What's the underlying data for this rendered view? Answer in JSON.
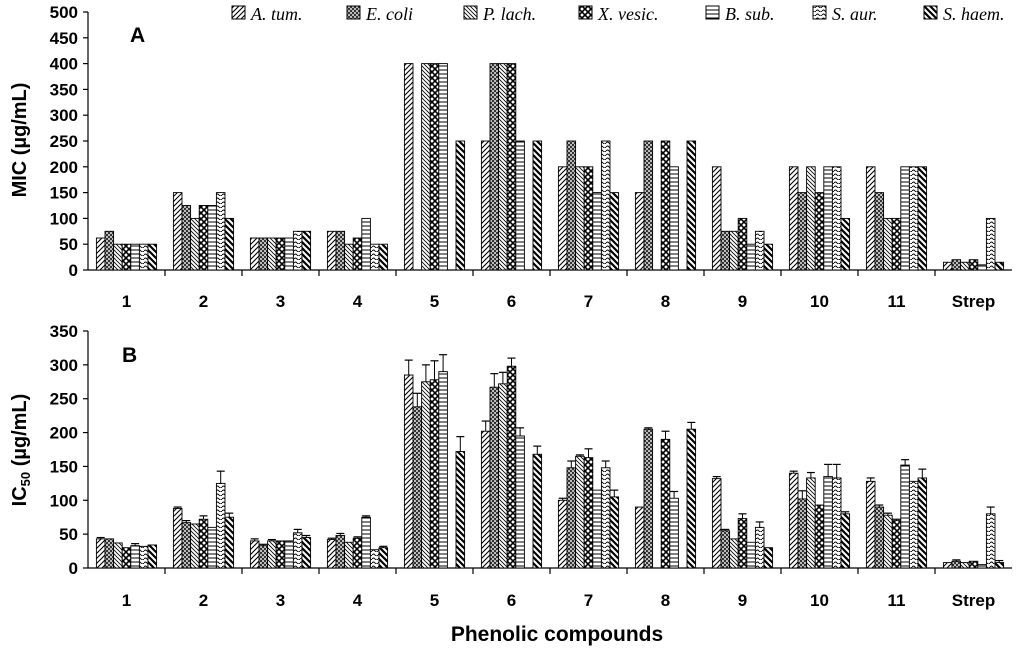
{
  "chart_data": {
    "type": "bar",
    "categories": [
      "1",
      "2",
      "3",
      "4",
      "5",
      "6",
      "7",
      "8",
      "9",
      "10",
      "11",
      "Strep"
    ],
    "legend": [
      "A. tum.",
      "E. coli",
      "P. lach.",
      "X. vesic.",
      "B. sub.",
      "S. aur.",
      "S. haem."
    ],
    "xlabel": "Phenolic compounds",
    "panels": [
      {
        "label": "A",
        "ylabel": "MIC (µg/mL)",
        "ylim": [
          0,
          500
        ],
        "yticks": [
          "0",
          "50",
          "100",
          "150",
          "200",
          "250",
          "300",
          "350",
          "400",
          "450",
          "500"
        ],
        "series": [
          {
            "name": "A. tum.",
            "values": [
              62,
              150,
              62,
              75,
              400,
              250,
              200,
              150,
              200,
              200,
              200,
              15
            ]
          },
          {
            "name": "E. coli",
            "values": [
              75,
              125,
              62,
              75,
              0,
              400,
              250,
              250,
              75,
              150,
              150,
              20
            ]
          },
          {
            "name": "P. lach.",
            "values": [
              50,
              100,
              62,
              50,
              400,
              400,
              200,
              0,
              75,
              200,
              100,
              15
            ]
          },
          {
            "name": "X. vesic.",
            "values": [
              50,
              125,
              62,
              62,
              400,
              400,
              200,
              250,
              100,
              150,
              100,
              20
            ]
          },
          {
            "name": "B. sub.",
            "values": [
              50,
              125,
              62,
              100,
              400,
              250,
              150,
              200,
              50,
              200,
              200,
              10
            ]
          },
          {
            "name": "S. aur.",
            "values": [
              50,
              150,
              75,
              50,
              0,
              0,
              250,
              0,
              75,
              200,
              200,
              100
            ]
          },
          {
            "name": "S. haem.",
            "values": [
              50,
              100,
              75,
              50,
              250,
              250,
              150,
              250,
              50,
              100,
              200,
              15
            ]
          }
        ],
        "errors": null
      },
      {
        "label": "B",
        "ylabel": "IC50 (µg/mL)",
        "ylabel_main": "IC",
        "ylabel_sub": "50",
        "ylabel_unit": " (µg/mL)",
        "ylim": [
          0,
          350
        ],
        "yticks": [
          "0",
          "50",
          "100",
          "150",
          "200",
          "250",
          "300",
          "350"
        ],
        "series": [
          {
            "name": "A. tum.",
            "values": [
              43,
              88,
              40,
              42,
              285,
              202,
              100,
              90,
              132,
              140,
              128,
              8
            ]
          },
          {
            "name": "E. coli",
            "values": [
              43,
              67,
              33,
              48,
              238,
              267,
              148,
              205,
              55,
              102,
              90,
              10
            ]
          },
          {
            "name": "P. lach.",
            "values": [
              37,
              65,
              40,
              38,
              275,
              272,
              165,
              0,
              43,
              133,
              78,
              8
            ]
          },
          {
            "name": "X. vesic.",
            "values": [
              30,
              72,
              40,
              44,
              278,
              298,
              163,
              190,
              73,
              93,
              70,
              10
            ]
          },
          {
            "name": "B. sub.",
            "values": [
              33,
              60,
              40,
              75,
              290,
              195,
              115,
              103,
              38,
              135,
              152,
              5
            ]
          },
          {
            "name": "S. aur.",
            "values": [
              32,
              125,
              52,
              27,
              0,
              0,
              148,
              0,
              60,
              133,
              128,
              80
            ]
          },
          {
            "name": "S. haem.",
            "values": [
              34,
              75,
              45,
              30,
              172,
              168,
              105,
              205,
              30,
              80,
              133,
              8
            ]
          }
        ],
        "errors": [
          [
            2,
            0,
            0,
            0,
            3,
            0,
            0
          ],
          [
            2,
            3,
            0,
            5,
            0,
            18,
            6
          ],
          [
            3,
            2,
            2,
            0,
            0,
            5,
            3
          ],
          [
            2,
            3,
            0,
            2,
            2,
            0,
            2
          ],
          [
            22,
            20,
            25,
            28,
            25,
            0,
            22
          ],
          [
            15,
            20,
            17,
            12,
            12,
            0,
            12
          ],
          [
            3,
            10,
            2,
            13,
            0,
            10,
            10
          ],
          [
            0,
            2,
            0,
            12,
            10,
            0,
            10
          ],
          [
            3,
            2,
            0,
            7,
            0,
            8,
            0
          ],
          [
            3,
            12,
            8,
            0,
            18,
            20,
            3
          ],
          [
            5,
            3,
            3,
            2,
            8,
            0,
            13
          ],
          [
            0,
            2,
            0,
            0,
            0,
            10,
            3
          ]
        ]
      }
    ]
  },
  "colors": {
    "bar_fill": "#ffffff",
    "bar_stroke": "#000000",
    "axis": "#000000"
  }
}
